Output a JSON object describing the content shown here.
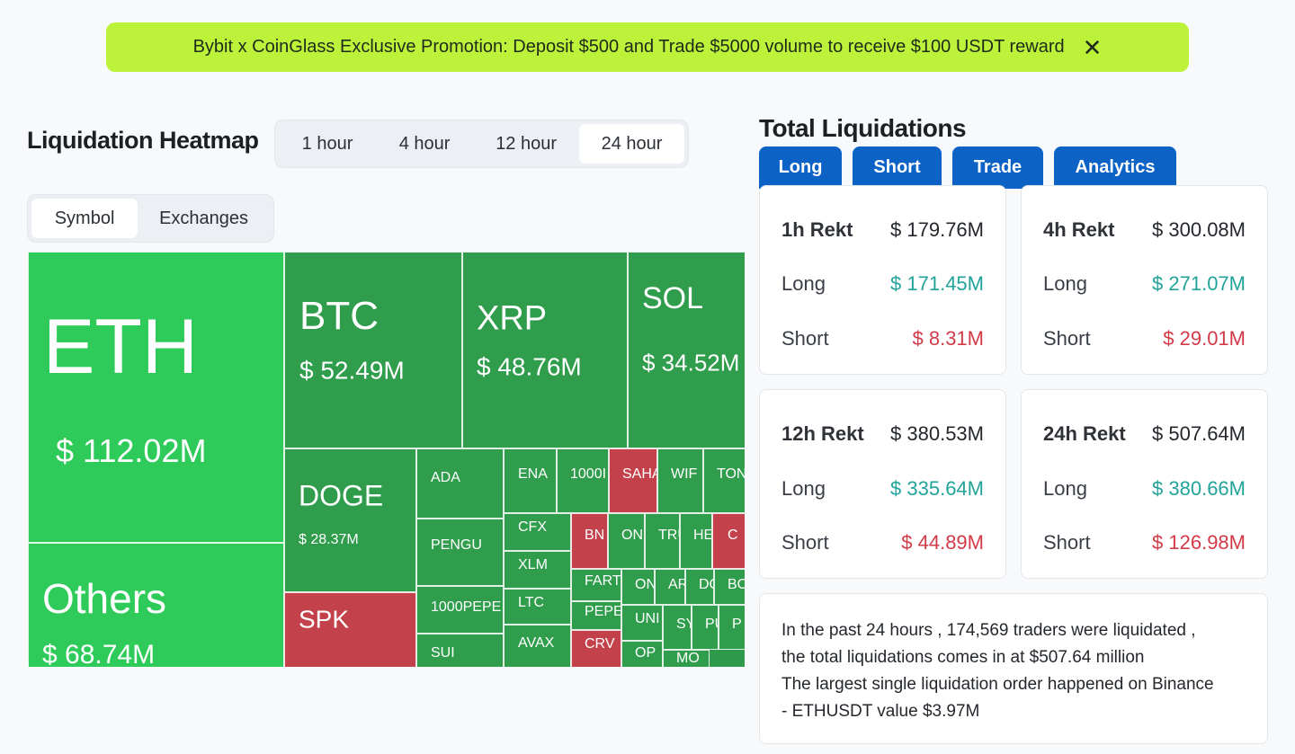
{
  "promo": {
    "text": "Bybit x CoinGlass Exclusive Promotion: Deposit $500 and Trade $5000 volume to receive $100 USDT reward",
    "close_icon": "✕"
  },
  "heatmap": {
    "title": "Liquidation Heatmap",
    "time_options": [
      "1 hour",
      "4 hour",
      "12 hour",
      "24 hour"
    ],
    "time_selected": "24 hour",
    "view_options": [
      "Symbol",
      "Exchanges"
    ],
    "view_selected": "Symbol",
    "colors": {
      "long_dominant": "#2fcb5a",
      "long": "#2f9d4c",
      "short": "#c3414a"
    },
    "tiles": [
      {
        "name": "ETH",
        "value": "$ 112.02M"
      },
      {
        "name": "Others",
        "value": "$ 68.74M"
      },
      {
        "name": "BTC",
        "value": "$ 52.49M"
      },
      {
        "name": "XRP",
        "value": "$ 48.76M"
      },
      {
        "name": "SOL",
        "value": "$ 34.52M"
      },
      {
        "name": "DOGE",
        "value": "$ 28.37M"
      },
      {
        "name": "SPK",
        "value": ""
      },
      {
        "name": "ADA",
        "value": ""
      },
      {
        "name": "PENGU",
        "value": ""
      },
      {
        "name": "1000PEPE",
        "value": ""
      },
      {
        "name": "SUI",
        "value": ""
      },
      {
        "name": "ENA",
        "value": ""
      },
      {
        "name": "1000I",
        "value": ""
      },
      {
        "name": "SAHA",
        "value": ""
      },
      {
        "name": "WIF",
        "value": ""
      },
      {
        "name": "TON",
        "value": ""
      },
      {
        "name": "CFX",
        "value": ""
      },
      {
        "name": "BN",
        "value": ""
      },
      {
        "name": "ON",
        "value": ""
      },
      {
        "name": "TRU",
        "value": ""
      },
      {
        "name": "HE",
        "value": ""
      },
      {
        "name": "C",
        "value": ""
      },
      {
        "name": "XLM",
        "value": ""
      },
      {
        "name": "FART",
        "value": ""
      },
      {
        "name": "ON",
        "value": ""
      },
      {
        "name": "AR",
        "value": ""
      },
      {
        "name": "DO",
        "value": ""
      },
      {
        "name": "BO",
        "value": ""
      },
      {
        "name": "LTC",
        "value": ""
      },
      {
        "name": "PEPE",
        "value": ""
      },
      {
        "name": "UNI",
        "value": ""
      },
      {
        "name": "SY",
        "value": ""
      },
      {
        "name": "PU",
        "value": ""
      },
      {
        "name": "P",
        "value": ""
      },
      {
        "name": "AVAX",
        "value": ""
      },
      {
        "name": "CRV",
        "value": ""
      },
      {
        "name": "OP",
        "value": ""
      },
      {
        "name": "MO",
        "value": ""
      }
    ]
  },
  "total": {
    "title": "Total Liquidations",
    "tabs": [
      "Long",
      "Short",
      "Trade",
      "Analytics"
    ],
    "cards": [
      {
        "label": "1h Rekt",
        "total": "$ 179.76M",
        "long_label": "Long",
        "long": "$ 171.45M",
        "short_label": "Short",
        "short": "$ 8.31M"
      },
      {
        "label": "4h Rekt",
        "total": "$ 300.08M",
        "long_label": "Long",
        "long": "$ 271.07M",
        "short_label": "Short",
        "short": "$ 29.01M"
      },
      {
        "label": "12h Rekt",
        "total": "$ 380.53M",
        "long_label": "Long",
        "long": "$ 335.64M",
        "short_label": "Short",
        "short": "$ 44.89M"
      },
      {
        "label": "24h Rekt",
        "total": "$ 507.64M",
        "long_label": "Long",
        "long": "$ 380.66M",
        "short_label": "Short",
        "short": "$ 126.98M"
      }
    ],
    "summary": [
      "In the past 24 hours , 174,569 traders were liquidated ,",
      "the total liquidations comes in at $507.64 million",
      "The largest single liquidation order happened on Binance",
      "- ETHUSDT value $3.97M"
    ]
  }
}
